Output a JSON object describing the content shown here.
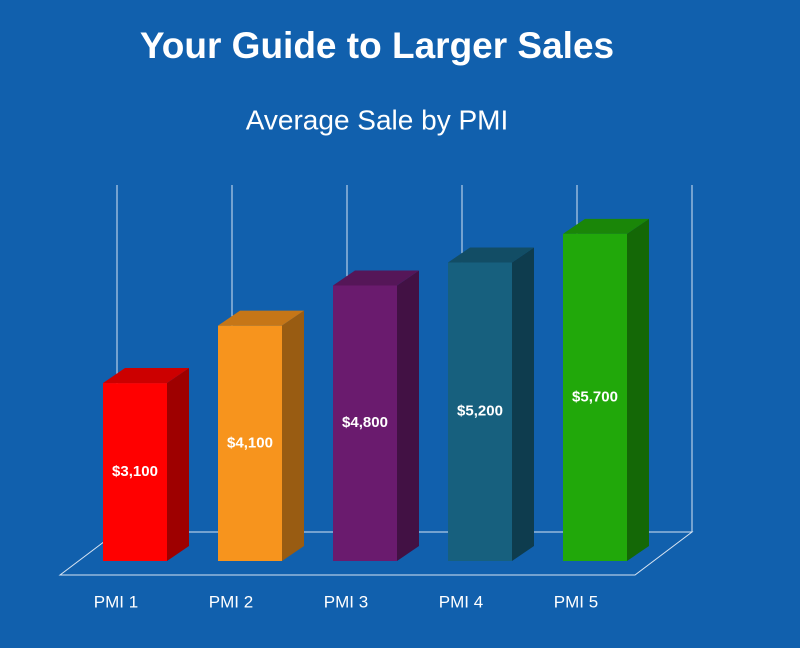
{
  "chart_data": {
    "type": "bar3d",
    "title": "Your Guide to Larger Sales",
    "subtitle": "Average Sale by PMI",
    "categories": [
      "PMI 1",
      "PMI 2",
      "PMI 3",
      "PMI 4",
      "PMI 5"
    ],
    "values": [
      3100,
      4100,
      4800,
      5200,
      5700
    ],
    "value_labels": [
      "$3,100",
      "$4,100",
      "$4,800",
      "$5,200",
      "$5,700"
    ],
    "colors": [
      "#ff0000",
      "#f7941d",
      "#6a1b6e",
      "#17607e",
      "#21a80a"
    ],
    "grid": true
  }
}
